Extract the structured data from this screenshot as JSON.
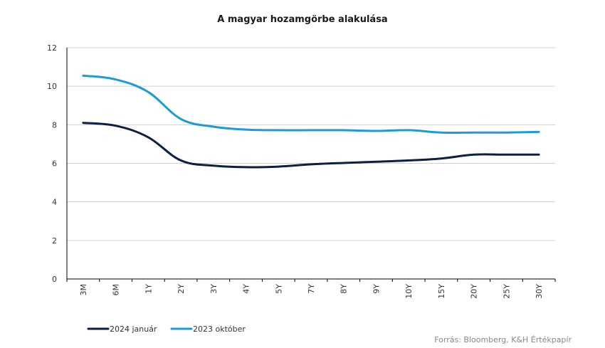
{
  "chart_data": {
    "type": "line",
    "title": "A magyar hozamgörbe alakulása",
    "xlabel": "",
    "ylabel": "",
    "categories": [
      "3M",
      "6M",
      "1Y",
      "2Y",
      "3Y",
      "4Y",
      "5Y",
      "7Y",
      "8Y",
      "9Y",
      "10Y",
      "15Y",
      "20Y",
      "25Y",
      "30Y"
    ],
    "ylim": [
      0,
      12
    ],
    "yticks": [
      0,
      2,
      4,
      6,
      8,
      10,
      12
    ],
    "grid": true,
    "legend_position": "bottom-left",
    "series": [
      {
        "name": "2024 január",
        "color": "#0b1f45",
        "values": [
          8.1,
          7.95,
          7.35,
          6.15,
          5.88,
          5.8,
          5.83,
          5.95,
          6.02,
          6.08,
          6.15,
          6.25,
          6.45,
          6.45,
          6.45
        ]
      },
      {
        "name": "2023 október",
        "color": "#1e9ad6",
        "values": [
          10.55,
          10.35,
          9.7,
          8.3,
          7.9,
          7.75,
          7.72,
          7.72,
          7.72,
          7.68,
          7.72,
          7.6,
          7.6,
          7.6,
          7.63
        ]
      }
    ]
  },
  "source": "Forrás: Bloomberg,  K&H Értékpapír"
}
